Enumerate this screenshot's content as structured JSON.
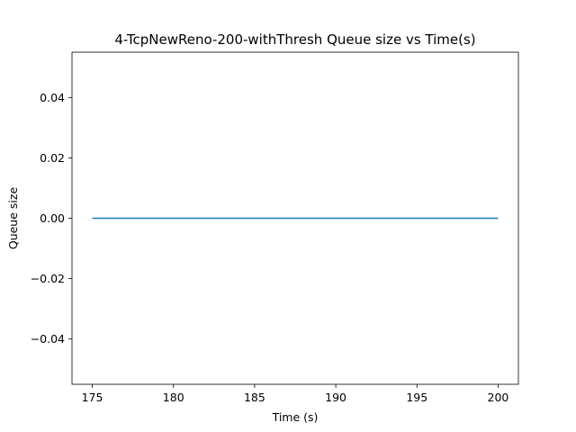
{
  "chart_data": {
    "type": "line",
    "title": "4-TcpNewReno-200-withThresh Queue size vs Time(s)",
    "xlabel": "Time (s)",
    "ylabel": "Queue size",
    "xlim": [
      173.75,
      201.25
    ],
    "ylim": [
      -0.055,
      0.055
    ],
    "xticks": [
      175,
      180,
      185,
      190,
      195,
      200
    ],
    "xtick_labels": [
      "175",
      "180",
      "185",
      "190",
      "195",
      "200"
    ],
    "yticks": [
      -0.04,
      -0.02,
      0.0,
      0.02,
      0.04
    ],
    "ytick_labels": [
      "−0.04",
      "−0.02",
      "0.00",
      "0.02",
      "0.04"
    ],
    "grid": false,
    "series": [
      {
        "color": "#1f77b4",
        "x": [
          175,
          200
        ],
        "y": [
          0,
          0
        ]
      }
    ]
  }
}
